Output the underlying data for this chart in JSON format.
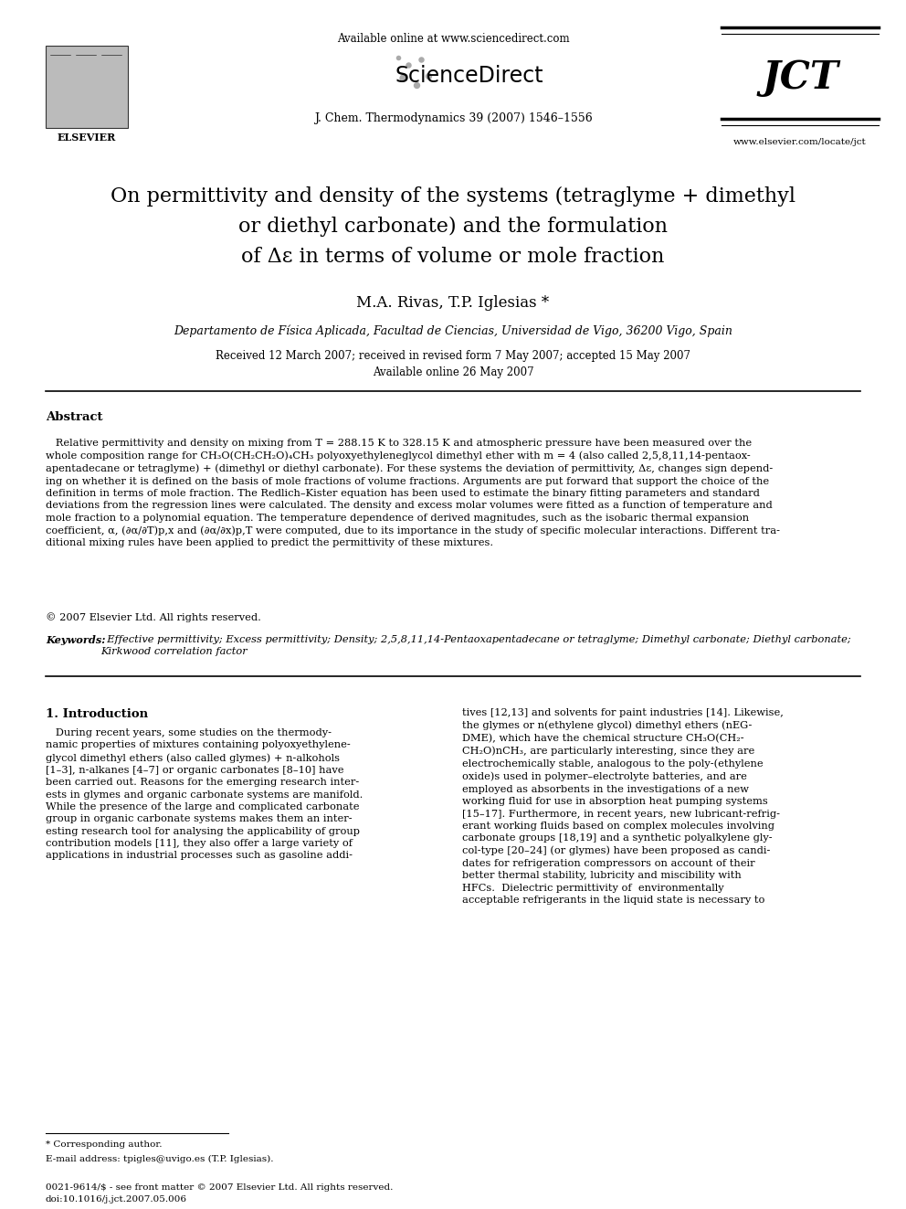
{
  "fig_width": 9.92,
  "fig_height": 13.23,
  "dpi": 100,
  "bg_color": "#ffffff",
  "header_available": "Available online at www.sciencedirect.com",
  "header_sciencedirect": "ScienceDirect",
  "header_journal": "J. Chem. Thermodynamics 39 (2007) 1546–1556",
  "header_jct": "JCT",
  "header_website": "www.elsevier.com/locate/jct",
  "header_elsevier": "ELSEVIER",
  "title_line1": "On permittivity and density of the systems (tetraglyme + dimethyl",
  "title_line2": "or diethyl carbonate) and the formulation",
  "title_line3": "of Δε in terms of volume or mole fraction",
  "authors": "M.A. Rivas, T.P. Iglesias *",
  "affiliation": "Departamento de Física Aplicada, Facultad de Ciencias, Universidad de Vigo, 36200 Vigo, Spain",
  "received": "Received 12 March 2007; received in revised form 7 May 2007; accepted 15 May 2007",
  "available_online": "Available online 26 May 2007",
  "abstract_title": "Abstract",
  "abstract_para": "   Relative permittivity and density on mixing from T = 288.15 K to 328.15 K and atmospheric pressure have been measured over the\nwhole composition range for CH₃O(CH₂CH₂O)₄CH₃ polyoxyethyleneglycol dimethyl ether with m = 4 (also called 2,5,8,11,14-pentaox-\napentadecane or tetraglyme) + (dimethyl or diethyl carbonate). For these systems the deviation of permittivity, Δε, changes sign depend-\ning on whether it is defined on the basis of mole fractions of volume fractions. Arguments are put forward that support the choice of the\ndefinition in terms of mole fraction. The Redlich–Kister equation has been used to estimate the binary fitting parameters and standard\ndeviations from the regression lines were calculated. The density and excess molar volumes were fitted as a function of temperature and\nmole fraction to a polynomial equation. The temperature dependence of derived magnitudes, such as the isobaric thermal expansion\ncoefficient, α, (∂α/∂T)p,x and (∂α/∂x)p,T were computed, due to its importance in the study of specific molecular interactions. Different tra-\nditional mixing rules have been applied to predict the permittivity of these mixtures.",
  "copyright": "© 2007 Elsevier Ltd. All rights reserved.",
  "kw_label": "Keywords:",
  "kw_text": "  Effective permittivity; Excess permittivity; Density; 2,5,8,11,14-Pentaoxapentadecane or tetraglyme; Dimethyl carbonate; Diethyl carbonate;\nKirkwood correlation factor",
  "intro_heading": "1. Introduction",
  "intro_col1_line1": "   During recent years, some studies on the thermody-",
  "intro_col1": "   During recent years, some studies on the thermody-\nnamic properties of mixtures containing polyoxyethylene-\nglycol dimethyl ethers (also called glymes) + n-alkohols\n[1–3], n-alkanes [4–7] or organic carbonates [8–10] have\nbeen carried out. Reasons for the emerging research inter-\nests in glymes and organic carbonate systems are manifold.\nWhile the presence of the large and complicated carbonate\ngroup in organic carbonate systems makes them an inter-\nesting research tool for analysing the applicability of group\ncontribution models [11], they also offer a large variety of\napplications in industrial processes such as gasoline addi-",
  "intro_col2": "tives [12,13] and solvents for paint industries [14]. Likewise,\nthe glymes or n(ethylene glycol) dimethyl ethers (nEG-\nDME), which have the chemical structure CH₃O(CH₂-\nCH₂O)nCH₃, are particularly interesting, since they are\nelectrochemically stable, analogous to the poly-(ethylene\noxide)s used in polymer–electrolyte batteries, and are\nemployed as absorbents in the investigations of a new\nworking fluid for use in absorption heat pumping systems\n[15–17]. Furthermore, in recent years, new lubricant-refrig-\nerant working fluids based on complex molecules involving\ncarbonate groups [18,19] and a synthetic polyalkylene gly-\ncol-type [20–24] (or glymes) have been proposed as candi-\ndates for refrigeration compressors on account of their\nbetter thermal stability, lubricity and miscibility with\nHFCs.  Dielectric permittivity of  environmentally\nacceptable refrigerants in the liquid state is necessary to",
  "footnote_line": "* Corresponding author.",
  "footnote_email": "E-mail address: tpigles@uvigo.es (T.P. Iglesias).",
  "bottom1": "0021-9614/$ - see front matter © 2007 Elsevier Ltd. All rights reserved.",
  "bottom2": "doi:10.1016/j.jct.2007.05.006"
}
